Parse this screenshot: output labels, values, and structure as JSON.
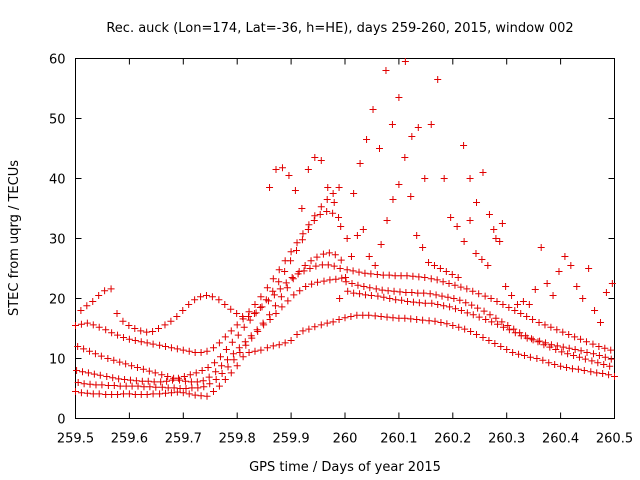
{
  "chart_data": {
    "type": "scatter",
    "title": "Rec. auck (Lon=174, Lat=-36, h=HE), days 259-260, 2015, window 002",
    "xlabel": "GPS time / Days of year 2015",
    "ylabel": "STEC from uqrg / TECUs",
    "xlim": [
      259.5,
      260.5
    ],
    "ylim": [
      0,
      60
    ],
    "x_ticks": [
      "259.5",
      "259.6",
      "259.7",
      "259.8",
      "259.9",
      "260",
      "260.1",
      "260.2",
      "260.3",
      "260.4",
      "260.5"
    ],
    "y_ticks": [
      "0",
      "10",
      "20",
      "30",
      "40",
      "50",
      "60"
    ],
    "grid": false,
    "legend": "none",
    "marker": "plus",
    "point_color": "#e00000",
    "series": [
      {
        "x": [
          259.5,
          259.511,
          259.522,
          259.533,
          259.544,
          259.556,
          259.567,
          259.578,
          259.589,
          259.6,
          259.611,
          259.622,
          259.633,
          259.644,
          259.656,
          259.667,
          259.678,
          259.689,
          259.7,
          259.711,
          259.722,
          259.733,
          259.744,
          259.756,
          259.767,
          259.778,
          259.789,
          259.8,
          259.811,
          259.822,
          259.833,
          259.844,
          259.856,
          259.867,
          259.878,
          259.889,
          259.9,
          259.911,
          259.922,
          259.933,
          259.944,
          259.956,
          259.967,
          259.978,
          259.989,
          260.0,
          260.011,
          260.022,
          260.033,
          260.044,
          260.056,
          260.067,
          260.078,
          260.089,
          260.1,
          260.111,
          260.122,
          260.133,
          260.144,
          260.156,
          260.167,
          260.178,
          260.189,
          260.2,
          260.211,
          260.222,
          260.233,
          260.244,
          260.256,
          260.267,
          260.278,
          260.289,
          260.3,
          260.311,
          260.322,
          260.333,
          260.344,
          260.356,
          260.367,
          260.378,
          260.389,
          260.4,
          260.411,
          260.422,
          260.433,
          260.444,
          260.456,
          260.467,
          260.478,
          260.489,
          260.5
        ],
        "y": [
          4.5,
          4.3,
          4.2,
          4.1,
          4.1,
          4.0,
          4.0,
          4.0,
          4.1,
          4.1,
          4.0,
          4.0,
          4.0,
          4.1,
          4.1,
          4.2,
          4.3,
          4.4,
          4.3,
          4.1,
          3.9,
          3.8,
          3.7,
          4.5,
          5.4,
          6.5,
          7.6,
          8.8,
          10.3,
          11.0,
          11.2,
          11.4,
          11.8,
          12.1,
          12.3,
          12.6,
          13.0,
          14.0,
          14.6,
          14.9,
          15.3,
          15.6,
          15.9,
          16.1,
          16.5,
          16.8,
          17.0,
          17.2,
          17.2,
          17.2,
          17.1,
          17.0,
          16.9,
          16.8,
          16.7,
          16.7,
          16.6,
          16.5,
          16.4,
          16.3,
          16.2,
          16.0,
          15.8,
          15.5,
          15.2,
          14.9,
          14.5,
          14.0,
          13.5,
          13.0,
          12.5,
          12.0,
          11.5,
          11.0,
          10.7,
          10.5,
          10.2,
          10.0,
          9.7,
          9.3,
          9.0,
          8.7,
          8.5,
          8.3,
          8.2,
          8.0,
          7.8,
          7.6,
          7.5,
          7.3,
          7.0
        ]
      },
      {
        "x": [
          259.505,
          259.516,
          259.527,
          259.538,
          259.549,
          259.561,
          259.572,
          259.583,
          259.594,
          259.605,
          259.616,
          259.627,
          259.638,
          259.649,
          259.661,
          259.672,
          259.683,
          259.694,
          259.705,
          259.716,
          259.727,
          259.738,
          259.749,
          259.761,
          259.772,
          259.783,
          259.794,
          259.805,
          259.816,
          259.827,
          259.838,
          259.849,
          259.861,
          259.872,
          259.883,
          259.894,
          259.905,
          259.916,
          259.927,
          259.938,
          259.949,
          259.961,
          259.972,
          259.983,
          259.994,
          260.005,
          260.016,
          260.027,
          260.038,
          260.049,
          260.061,
          260.072,
          260.083,
          260.094,
          260.105,
          260.116,
          260.127,
          260.138,
          260.149,
          260.161,
          260.172,
          260.183,
          260.194,
          260.205,
          260.216,
          260.227,
          260.238,
          260.249,
          260.261,
          260.272,
          260.283,
          260.294,
          260.305,
          260.316,
          260.327,
          260.338,
          260.349,
          260.361,
          260.372,
          260.383,
          260.394,
          260.405,
          260.416,
          260.427,
          260.438,
          260.449,
          260.461,
          260.472,
          260.483,
          260.494
        ],
        "y": [
          6.0,
          5.8,
          5.7,
          5.6,
          5.6,
          5.5,
          5.5,
          5.4,
          5.4,
          5.4,
          5.4,
          5.3,
          5.3,
          5.2,
          5.2,
          5.1,
          5.1,
          5.0,
          5.0,
          5.1,
          5.1,
          5.3,
          5.8,
          6.5,
          7.5,
          8.6,
          9.8,
          11.0,
          12.2,
          13.4,
          14.5,
          15.6,
          16.5,
          17.5,
          18.6,
          19.6,
          20.6,
          21.3,
          22.0,
          22.4,
          22.7,
          22.9,
          23.1,
          23.2,
          23.4,
          21.2,
          20.9,
          20.8,
          20.6,
          20.5,
          20.4,
          20.2,
          20.0,
          19.8,
          19.7,
          19.5,
          19.4,
          19.3,
          19.2,
          19.2,
          19.0,
          18.8,
          18.6,
          18.3,
          18.0,
          17.6,
          17.3,
          16.9,
          16.5,
          16.1,
          15.7,
          15.2,
          14.8,
          14.3,
          13.8,
          13.4,
          13.1,
          12.9,
          12.6,
          12.3,
          12.1,
          11.9,
          11.7,
          11.5,
          11.3,
          11.0,
          10.8,
          10.5,
          10.2,
          9.9
        ]
      },
      {
        "x": [
          259.502,
          259.513,
          259.524,
          259.535,
          259.546,
          259.558,
          259.569,
          259.58,
          259.591,
          259.602,
          259.613,
          259.624,
          259.635,
          259.646,
          259.658,
          259.669,
          259.68,
          259.691,
          259.702,
          259.713,
          259.724,
          259.735,
          259.746,
          259.758,
          259.769,
          259.78,
          259.791,
          259.802,
          259.813,
          259.824,
          259.835,
          259.846,
          259.858,
          259.869,
          259.88,
          259.891,
          259.902,
          259.913,
          259.924,
          259.935,
          259.946,
          259.958,
          259.969,
          259.98,
          259.991,
          260.002,
          260.013,
          260.024,
          260.035,
          260.046,
          260.058,
          260.069,
          260.08,
          260.091,
          260.102,
          260.113,
          260.124,
          260.135,
          260.146,
          260.158,
          260.169,
          260.18,
          260.191,
          260.202,
          260.213,
          260.224,
          260.235,
          260.246,
          260.258,
          260.269,
          260.28,
          260.291,
          260.302,
          260.313,
          260.324,
          260.335,
          260.346,
          260.358,
          260.369,
          260.38,
          260.391,
          260.402,
          260.413,
          260.424,
          260.435,
          260.446,
          260.458,
          260.469,
          260.48,
          260.491
        ],
        "y": [
          8.0,
          7.8,
          7.6,
          7.4,
          7.2,
          7.0,
          6.8,
          6.6,
          6.5,
          6.4,
          6.3,
          6.2,
          6.2,
          6.1,
          6.1,
          6.2,
          6.4,
          6.7,
          7.0,
          7.3,
          7.6,
          8.0,
          8.5,
          9.3,
          10.3,
          11.5,
          12.7,
          13.9,
          15.2,
          16.4,
          17.6,
          18.6,
          19.6,
          20.6,
          21.6,
          22.6,
          23.5,
          24.1,
          24.6,
          25.0,
          25.4,
          25.6,
          25.6,
          25.4,
          25.0,
          22.8,
          22.5,
          22.2,
          22.0,
          21.8,
          21.6,
          21.4,
          21.3,
          21.2,
          21.1,
          21.0,
          21.0,
          20.9,
          20.9,
          20.8,
          20.6,
          20.4,
          20.2,
          20.0,
          19.7,
          19.3,
          18.9,
          18.4,
          17.9,
          17.3,
          16.7,
          16.1,
          15.5,
          14.9,
          14.3,
          13.8,
          13.3,
          12.8,
          12.3,
          11.9,
          11.5,
          11.1,
          10.8,
          10.5,
          10.2,
          9.9,
          9.6,
          9.3,
          9.0,
          8.7
        ]
      },
      {
        "x": [
          259.504,
          259.515,
          259.526,
          259.537,
          259.548,
          259.56,
          259.571,
          259.582,
          259.593,
          259.604,
          259.615,
          259.626,
          259.637,
          259.648,
          259.66,
          259.671,
          259.682,
          259.693,
          259.704,
          259.715,
          259.726,
          259.737,
          259.748,
          259.76,
          259.771,
          259.782,
          259.793,
          259.804,
          259.815,
          259.826,
          259.837,
          259.848,
          259.86,
          259.871,
          259.882,
          259.893,
          259.904,
          259.915,
          259.926,
          259.937,
          259.948,
          259.96,
          259.971,
          259.982,
          259.993,
          260.004,
          260.015,
          260.026,
          260.037,
          260.048,
          260.06,
          260.071,
          260.082,
          260.093,
          260.104,
          260.115,
          260.126,
          260.137,
          260.148,
          260.16,
          260.171,
          260.182,
          260.193,
          260.204,
          260.215,
          260.226,
          260.237,
          260.248,
          260.26,
          260.271,
          260.282,
          260.293,
          260.304,
          260.315,
          260.326,
          260.337,
          260.348,
          260.36,
          260.371,
          260.382,
          260.393,
          260.404,
          260.415,
          260.426,
          260.437,
          260.448,
          260.46,
          260.471,
          260.482,
          260.493
        ],
        "y": [
          12.0,
          11.6,
          11.2,
          10.8,
          10.4,
          10.0,
          9.7,
          9.4,
          9.1,
          8.8,
          8.5,
          8.2,
          7.9,
          7.6,
          7.3,
          7.0,
          6.7,
          6.4,
          6.2,
          6.1,
          6.1,
          6.3,
          6.9,
          7.8,
          8.8,
          9.8,
          10.8,
          11.8,
          12.8,
          13.8,
          14.8,
          15.9,
          17.3,
          18.8,
          20.3,
          21.8,
          23.3,
          24.5,
          25.5,
          26.3,
          26.9,
          27.4,
          27.6,
          27.3,
          26.4,
          24.8,
          24.6,
          24.4,
          24.2,
          24.1,
          24.0,
          23.9,
          23.9,
          23.8,
          23.8,
          23.8,
          23.7,
          23.6,
          23.5,
          23.3,
          23.1,
          22.8,
          22.5,
          22.2,
          21.9,
          21.6,
          21.2,
          20.8,
          20.4,
          20.0,
          19.5,
          19.0,
          18.5,
          18.0,
          17.5,
          17.0,
          16.5,
          16.0,
          15.6,
          15.2,
          14.8,
          14.4,
          14.0,
          13.6,
          13.2,
          12.8,
          12.4,
          12.0,
          11.7,
          11.4
        ]
      },
      {
        "x": [
          259.5,
          259.511,
          259.522,
          259.533,
          259.544,
          259.556,
          259.567,
          259.578,
          259.589,
          259.6,
          259.611,
          259.622,
          259.633,
          259.644,
          259.656,
          259.667,
          259.678,
          259.689,
          259.7,
          259.711,
          259.722,
          259.733,
          259.744,
          259.756,
          259.767,
          259.778,
          259.789,
          259.8,
          259.811,
          259.822,
          259.833,
          259.844,
          259.856,
          259.867,
          259.878,
          259.889,
          259.9,
          259.911,
          259.922,
          259.933,
          259.944,
          259.956,
          259.967,
          259.978,
          259.989
        ],
        "y": [
          15.5,
          15.7,
          15.9,
          15.6,
          15.2,
          14.8,
          14.3,
          13.9,
          13.5,
          13.2,
          13.0,
          12.8,
          12.6,
          12.4,
          12.2,
          12.0,
          11.8,
          11.6,
          11.4,
          11.2,
          11.0,
          11.0,
          11.2,
          11.8,
          12.6,
          13.6,
          14.6,
          15.6,
          16.6,
          17.8,
          19.0,
          20.3,
          21.8,
          23.3,
          24.8,
          26.3,
          27.8,
          29.3,
          30.8,
          32.3,
          33.8,
          35.3,
          36.5,
          37.5,
          38.5
        ]
      },
      {
        "x": [
          259.51,
          259.521,
          259.532,
          259.543,
          259.554,
          259.566,
          259.577,
          259.588,
          259.599,
          259.61,
          259.621,
          259.632,
          259.643,
          259.654,
          259.666,
          259.677,
          259.688,
          259.699,
          259.71,
          259.721,
          259.732,
          259.743,
          259.754,
          259.766,
          259.777,
          259.788,
          259.799,
          259.81,
          259.821,
          259.832,
          259.843,
          259.854,
          259.866,
          259.877,
          259.888,
          259.899,
          259.91,
          259.921,
          259.932,
          259.943,
          259.954,
          259.966,
          259.977,
          259.988
        ],
        "y": [
          18.0,
          18.8,
          19.5,
          20.5,
          21.3,
          21.6,
          17.5,
          16.2,
          15.5,
          15.0,
          14.6,
          14.4,
          14.5,
          15.0,
          15.6,
          16.2,
          17.0,
          18.0,
          19.0,
          19.8,
          20.3,
          20.5,
          20.3,
          19.8,
          19.0,
          18.2,
          17.5,
          17.0,
          17.0,
          17.5,
          18.5,
          19.8,
          21.2,
          22.8,
          24.5,
          26.3,
          28.0,
          29.8,
          31.5,
          33.0,
          34.0,
          34.5,
          34.2,
          33.5
        ]
      },
      {
        "x": [
          259.86,
          259.872,
          259.884,
          259.896,
          259.908,
          259.92,
          259.932,
          259.944,
          259.956,
          259.968,
          259.98,
          259.992,
          260.004,
          260.016,
          260.028,
          260.04,
          260.052,
          260.064,
          260.076,
          260.088,
          260.1,
          260.112,
          260.124,
          260.136,
          260.148,
          260.16,
          260.172,
          260.184,
          260.196,
          260.208,
          260.22,
          260.232,
          260.244,
          260.256,
          260.268,
          260.28,
          260.292
        ],
        "y": [
          38.5,
          41.5,
          41.8,
          40.5,
          38.0,
          35.0,
          41.5,
          43.5,
          43.0,
          38.5,
          36.0,
          32.0,
          30.0,
          37.5,
          42.5,
          46.5,
          51.5,
          45.0,
          58.0,
          49.0,
          53.5,
          59.5,
          47.0,
          48.5,
          40.0,
          49.0,
          56.5,
          40.0,
          33.5,
          32.0,
          45.5,
          40.0,
          36.0,
          41.0,
          34.0,
          30.0,
          32.5
        ]
      },
      {
        "x": [
          259.99,
          260.001,
          260.012,
          260.023,
          260.034,
          260.045,
          260.056,
          260.067,
          260.078,
          260.089,
          260.1,
          260.111,
          260.122,
          260.133,
          260.144,
          260.155,
          260.166,
          260.177,
          260.188,
          260.199,
          260.21,
          260.221,
          260.232,
          260.243,
          260.254,
          260.265,
          260.276,
          260.287,
          260.298,
          260.309,
          260.32,
          260.331,
          260.342,
          260.353,
          260.364,
          260.375,
          260.386,
          260.397,
          260.408,
          260.419,
          260.43,
          260.441,
          260.452,
          260.463,
          260.474,
          260.485,
          260.496
        ],
        "y": [
          20.0,
          23.5,
          27.0,
          30.5,
          31.5,
          27.0,
          25.5,
          29.0,
          33.0,
          36.5,
          39.0,
          43.5,
          37.0,
          30.5,
          28.5,
          26.0,
          25.5,
          25.0,
          24.5,
          24.0,
          23.5,
          29.5,
          33.0,
          27.5,
          26.5,
          25.5,
          31.5,
          29.5,
          22.0,
          20.5,
          19.0,
          19.5,
          19.0,
          21.5,
          28.5,
          22.5,
          20.5,
          24.5,
          27.0,
          25.5,
          22.0,
          20.0,
          25.0,
          18.0,
          16.0,
          21.0,
          22.5
        ]
      }
    ]
  }
}
